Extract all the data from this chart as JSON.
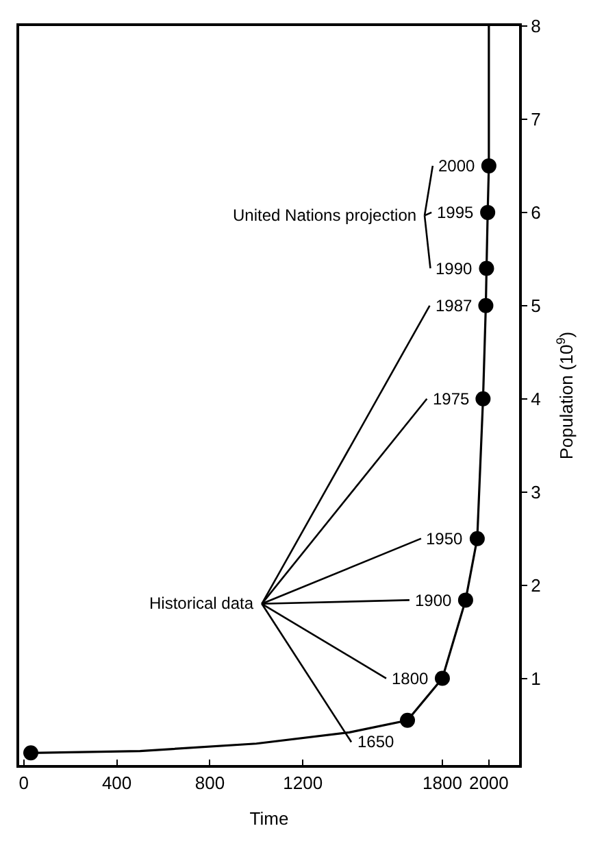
{
  "chart_data": {
    "type": "line",
    "xlabel": "Time",
    "ylabel": "Population (10$^{9}$)",
    "xlim": [
      -20,
      2130
    ],
    "xticks": [
      0,
      400,
      800,
      1200,
      1800,
      2000
    ],
    "ylim": [
      0.07,
      8
    ],
    "yticks": [
      1,
      2,
      3,
      4,
      5,
      6,
      7,
      8
    ],
    "series": [
      {
        "color": "#000000",
        "marker": "none",
        "x": [
          30,
          500,
          1000,
          1400,
          1650,
          1800,
          1900,
          1950,
          1975,
          1987,
          1990,
          1995,
          2000,
          2000
        ],
        "values": [
          0.2,
          0.22,
          0.3,
          0.42,
          0.55,
          1.0,
          1.84,
          2.5,
          4.0,
          5.0,
          5.4,
          6.0,
          6.5,
          8
        ]
      },
      {
        "type": "scatter",
        "color": "#000000",
        "marker": "circle",
        "x": [
          30,
          1650,
          1800,
          1900,
          1950,
          1975,
          1987,
          1990,
          1995,
          2000
        ],
        "values": [
          0.2,
          0.55,
          1.0,
          1.84,
          2.5,
          4.0,
          5.0,
          5.4,
          6.0,
          6.5
        ]
      }
    ],
    "annotations": [
      "United Nations projection",
      "Historical data",
      {
        "text": "1650",
        "x": 1650,
        "y": 0.55
      },
      {
        "text": "1800",
        "x": 1800,
        "y": 1.0
      },
      {
        "text": "1900",
        "x": 1900,
        "y": 1.84
      },
      {
        "text": "1950",
        "x": 1950,
        "y": 2.5
      },
      {
        "text": "1975",
        "x": 1975,
        "y": 4.0
      },
      {
        "text": "1987",
        "x": 1987,
        "y": 5.0
      },
      {
        "text": "1990",
        "x": 1990,
        "y": 5.4
      },
      {
        "text": "1995",
        "x": 1995,
        "y": 6.0
      },
      {
        "text": "2000",
        "x": 2000,
        "y": 6.5
      }
    ]
  }
}
